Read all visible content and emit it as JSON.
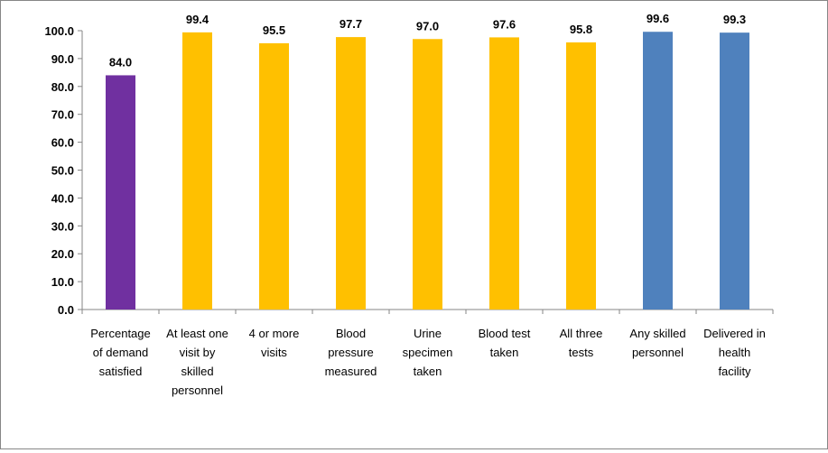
{
  "chart_data": {
    "type": "bar",
    "title": "",
    "xlabel": "",
    "ylabel": "",
    "ylim": [
      0,
      100
    ],
    "yticks": [
      "0.0",
      "10.0",
      "20.0",
      "30.0",
      "40.0",
      "50.0",
      "60.0",
      "70.0",
      "80.0",
      "90.0",
      "100.0"
    ],
    "grid": false,
    "legend": "none",
    "categories": [
      [
        "Percentage",
        "of demand",
        "satisfied"
      ],
      [
        "At least one",
        "visit by",
        "skilled",
        "personnel"
      ],
      [
        "4 or more",
        "visits"
      ],
      [
        "Blood",
        "pressure",
        "measured"
      ],
      [
        "Urine",
        "specimen",
        "taken"
      ],
      [
        "Blood test",
        "taken"
      ],
      [
        "All three",
        "tests"
      ],
      [
        "Any skilled",
        "personnel"
      ],
      [
        "Delivered in",
        "health",
        "facility"
      ]
    ],
    "values": [
      84.0,
      99.4,
      95.5,
      97.7,
      97.0,
      97.6,
      95.8,
      99.6,
      99.3
    ],
    "value_labels": [
      "84.0",
      "99.4",
      "95.5",
      "97.7",
      "97.0",
      "97.6",
      "95.8",
      "99.6",
      "99.3"
    ],
    "colors": [
      "#7030A0",
      "#FFC000",
      "#FFC000",
      "#FFC000",
      "#FFC000",
      "#FFC000",
      "#FFC000",
      "#4F81BD",
      "#4F81BD"
    ],
    "axis_color": "#868686"
  }
}
